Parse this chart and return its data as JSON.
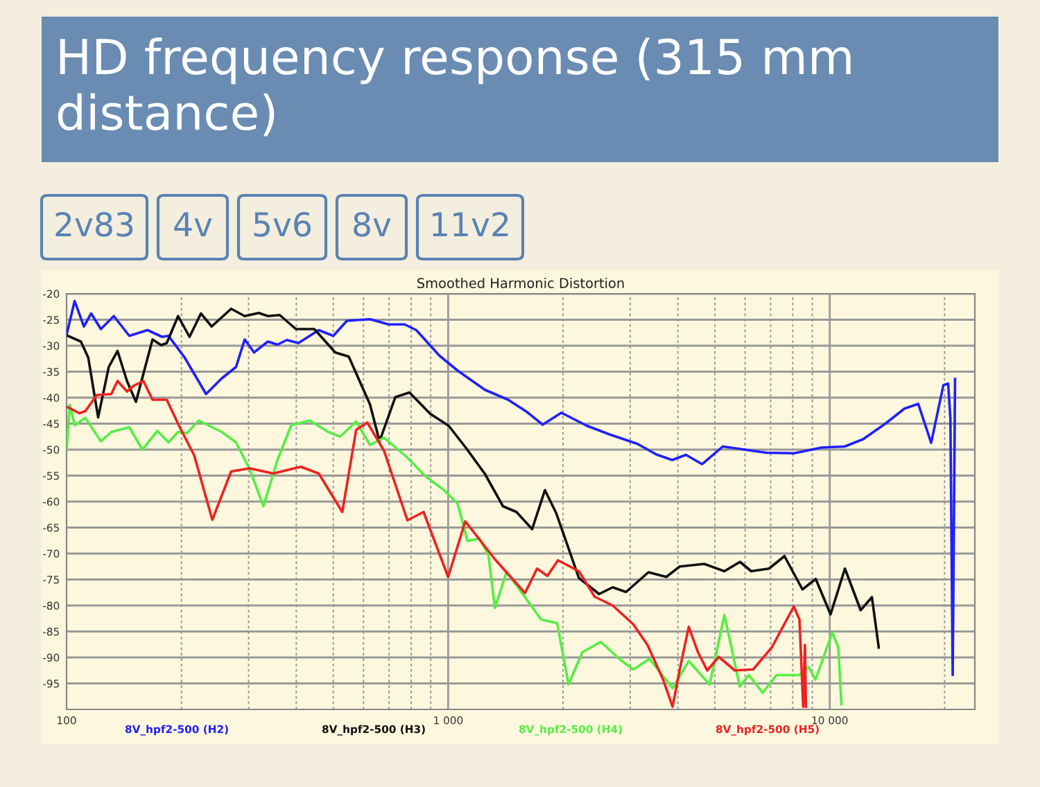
{
  "chart_data": {
    "type": "line",
    "title": "HD frequency response (315 mm distance)",
    "subtitle": "Smoothed Harmonic Distortion",
    "annotations": [
      "2v83",
      "4v",
      "5v6",
      "8v",
      "11v2"
    ],
    "log": "x",
    "grid": true,
    "legend": "bottom",
    "marker": "none",
    "line_style": "solid",
    "xlim": [
      100,
      24000
    ],
    "xticks": [
      100,
      {
        "value": 1000,
        "label": "1 000"
      },
      {
        "value": 10000,
        "label": "10 000"
      }
    ],
    "ylim": [
      -100,
      -20
    ],
    "yticks": [
      -20,
      -25,
      -30,
      -35,
      -40,
      -45,
      -50,
      -55,
      -60,
      -65,
      -70,
      -75,
      -80,
      -85,
      -90,
      -95
    ],
    "series": [
      {
        "name": "8V_hpf2-500 (H2)",
        "color": "#2020ff",
        "x": [
          100,
          105,
          111,
          116,
          123,
          133,
          146,
          163,
          178,
          185,
          204,
          232,
          255,
          278,
          293,
          310,
          337,
          357,
          378,
          405,
          458,
          500,
          543,
          624,
          698,
          769,
          825,
          871,
          948,
          1059,
          1249,
          1436,
          1605,
          1769,
          1980,
          2308,
          2654,
          3135,
          3505,
          3865,
          4199,
          4628,
          5245,
          6111,
          6830,
          8066,
          9527,
          10945,
          12230,
          14050,
          15700,
          17060,
          18440,
          19850,
          20430,
          20710,
          21000,
          21300
        ],
        "values": [
          -27.9,
          -21.4,
          -26.3,
          -23.8,
          -26.8,
          -24.3,
          -28.1,
          -27,
          -28.3,
          -28.1,
          -32.3,
          -39.3,
          -36.3,
          -34.1,
          -28.8,
          -31.3,
          -29.2,
          -29.8,
          -28.9,
          -29.5,
          -27,
          -28.1,
          -25.2,
          -24.9,
          -25.9,
          -25.9,
          -27,
          -28.9,
          -31.9,
          -34.8,
          -38.5,
          -40.4,
          -42.7,
          -45.2,
          -42.9,
          -45.4,
          -47.1,
          -48.9,
          -50.9,
          -52,
          -51,
          -52.8,
          -49.4,
          -50.1,
          -50.6,
          -50.7,
          -49.6,
          -49.4,
          -48,
          -44.9,
          -42.1,
          -41.2,
          -48.7,
          -37.6,
          -37.3,
          -44,
          -93.4,
          -36.4
        ]
      },
      {
        "name": "8V_hpf2-500 (H3)",
        "color": "#111111",
        "x": [
          100,
          109,
          114,
          121,
          129,
          136,
          144,
          152,
          159,
          168,
          177,
          183,
          196,
          210,
          225,
          240,
          270,
          293,
          319,
          337,
          362,
          399,
          446,
          506,
          549,
          624,
          661,
          727,
          792,
          897,
          1003,
          1117,
          1249,
          1392,
          1510,
          1660,
          1793,
          1919,
          2201,
          2487,
          2698,
          2925,
          3349,
          3730,
          4044,
          4687,
          5295,
          5820,
          6225,
          6930,
          7610,
          8480,
          9190,
          10050,
          10960,
          12050,
          12900,
          13440
        ],
        "values": [
          -28,
          -29.2,
          -32.3,
          -43.8,
          -34.1,
          -31,
          -36.8,
          -40.8,
          -35.4,
          -28.8,
          -29.9,
          -29.5,
          -24.3,
          -28.3,
          -23.8,
          -26.3,
          -22.9,
          -24.3,
          -23.7,
          -24.3,
          -24.1,
          -26.8,
          -26.8,
          -31.3,
          -32.1,
          -41.3,
          -48.4,
          -39.9,
          -39,
          -43.1,
          -45.4,
          -49.8,
          -54.7,
          -60.9,
          -62,
          -65.3,
          -57.8,
          -62.2,
          -74.7,
          -77.8,
          -76.5,
          -77.4,
          -73.6,
          -74.5,
          -72.5,
          -72,
          -73.4,
          -71.6,
          -73.4,
          -72.9,
          -70.5,
          -76.9,
          -74.9,
          -81.7,
          -72.9,
          -80.9,
          -78.4,
          -88.1
        ]
      },
      {
        "name": "8V_hpf2-500 (H4)",
        "color": "#55ee44",
        "x": [
          100,
          102,
          105,
          112,
          123,
          131,
          146,
          158,
          173,
          185,
          196,
          207,
          222,
          255,
          278,
          302,
          328,
          357,
          388,
          434,
          485,
          521,
          574,
          624,
          679,
          781,
          871,
          975,
          1059,
          1124,
          1206,
          1275,
          1326,
          1422,
          1524,
          1752,
          1930,
          2068,
          2247,
          2513,
          2811,
          3054,
          3370,
          3874,
          4271,
          4844,
          5297,
          5810,
          6140,
          6670,
          7252,
          8330,
          8800,
          9170,
          10160,
          10530,
          10730
        ],
        "values": [
          -50.2,
          -41.4,
          -45.3,
          -43.9,
          -48.4,
          -46.6,
          -45.7,
          -50,
          -46.4,
          -48.6,
          -46.6,
          -46.8,
          -44.4,
          -46.6,
          -48.6,
          -53.8,
          -60.9,
          -52,
          -45.3,
          -44.4,
          -46.6,
          -47.5,
          -44.6,
          -49.1,
          -47.7,
          -51.5,
          -55.1,
          -57.8,
          -60.4,
          -67.6,
          -67.1,
          -70.2,
          -80.5,
          -73.6,
          -76.5,
          -82.7,
          -83.4,
          -95.2,
          -89,
          -87,
          -90.3,
          -92.3,
          -90.3,
          -95.9,
          -90.7,
          -95.2,
          -81.8,
          -95.6,
          -93.4,
          -96.8,
          -93.4,
          -93.4,
          -91.8,
          -94.3,
          -85.2,
          -88.1,
          -99
        ]
      },
      {
        "name": "8V_hpf2-500 (H5)",
        "color": "#ee2222",
        "x": [
          100,
          108,
          112,
          120,
          131,
          136,
          144,
          150,
          159,
          168,
          183,
          198,
          216,
          241,
          270,
          302,
          348,
          411,
          458,
          528,
          574,
          614,
          679,
          782,
          862,
          1000,
          1109,
          1326,
          1590,
          1710,
          1820,
          1940,
          2201,
          2420,
          2698,
          3054,
          3330,
          3660,
          3874,
          4040,
          4271,
          4515,
          4775,
          5120,
          5640,
          6300,
          7045,
          8050,
          8330,
          8520,
          8610,
          8660
        ],
        "values": [
          -41.7,
          -43,
          -42.6,
          -39.5,
          -39.3,
          -36.8,
          -38.8,
          -37.7,
          -36.8,
          -40.4,
          -40.4,
          -45.7,
          -51.1,
          -63.5,
          -54.2,
          -53.6,
          -54.6,
          -53.3,
          -54.6,
          -62,
          -46.2,
          -44.8,
          -50.2,
          -63.6,
          -62,
          -74.5,
          -63.8,
          -71.1,
          -77.6,
          -72.9,
          -74.3,
          -71.3,
          -73.4,
          -78.3,
          -80,
          -83.6,
          -87.6,
          -94.3,
          -99.5,
          -92.5,
          -84.1,
          -89,
          -92.5,
          -89.9,
          -92.5,
          -92.3,
          -88.1,
          -80.2,
          -82.7,
          -99.5,
          -87.6,
          -99.5
        ]
      }
    ]
  }
}
